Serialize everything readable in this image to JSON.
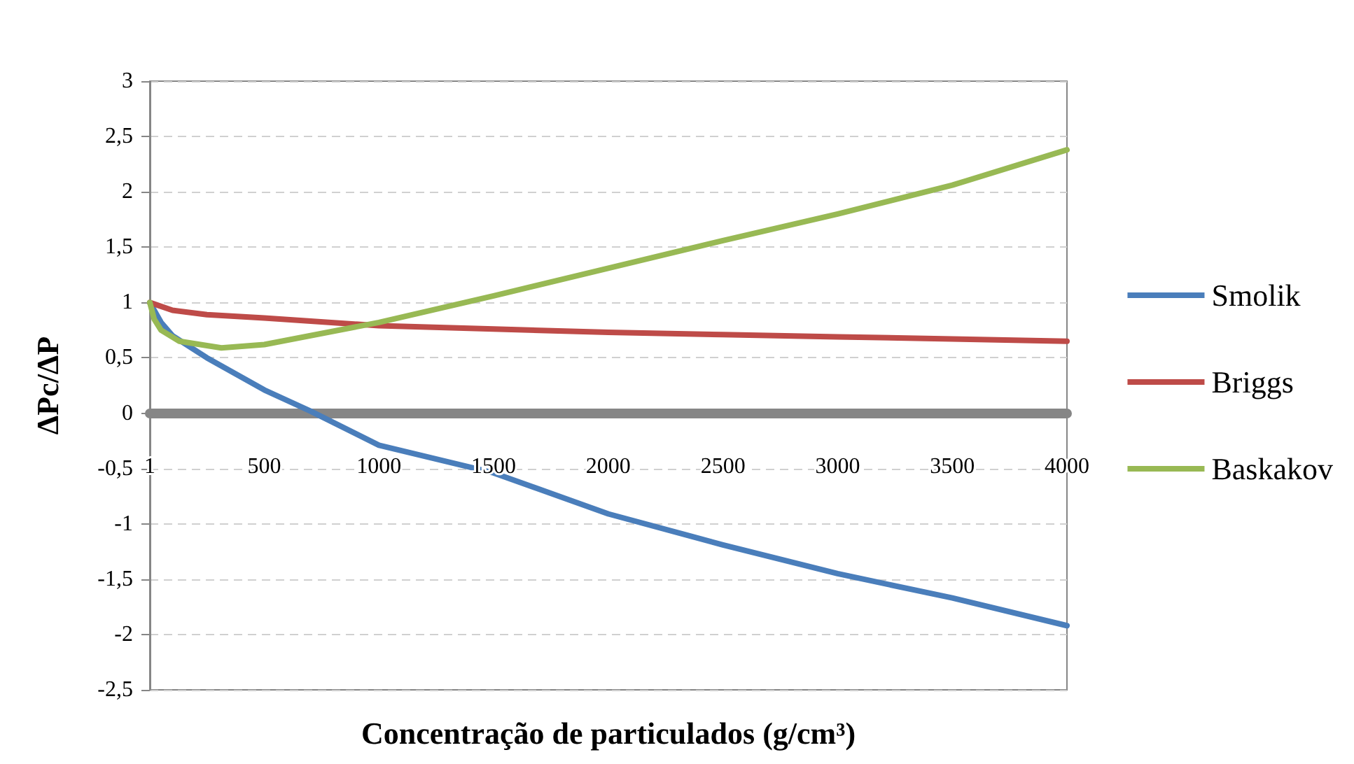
{
  "chart_data": {
    "type": "line",
    "xlabel": "Concentração de particulados (g/cm³)",
    "ylabel": "ΔPc/ΔP",
    "xlim": [
      1,
      4000
    ],
    "xticks": [
      1,
      500,
      1000,
      1500,
      2000,
      2500,
      3000,
      3500,
      4000
    ],
    "ylim": [
      -2.5,
      3
    ],
    "yticks": [
      {
        "value": -2.5,
        "label": "-2,5"
      },
      -2,
      {
        "value": -1.5,
        "label": "-1,5"
      },
      -1,
      {
        "value": -0.5,
        "label": "-0,5"
      },
      0,
      {
        "value": 0.5,
        "label": "0,5"
      },
      1,
      {
        "value": 1.5,
        "label": "1,5"
      },
      2,
      {
        "value": 2.5,
        "label": "2,5"
      },
      3
    ],
    "grid": "y",
    "legend": "right",
    "marker": "none",
    "line_style": "solid",
    "series": [
      {
        "name": "Smolik",
        "color": "#4a7ebb",
        "x": [
          1,
          50,
          100,
          250,
          500,
          700,
          1000,
          1500,
          2000,
          2500,
          3000,
          3500,
          4000
        ],
        "values": [
          1,
          0.82,
          0.7,
          0.5,
          0.21,
          0.02,
          -0.29,
          -0.54,
          -0.91,
          -1.19,
          -1.45,
          -1.67,
          -1.92
        ]
      },
      {
        "name": "Briggs",
        "color": "#be4b48",
        "x": [
          1,
          100,
          250,
          500,
          1000,
          1500,
          2000,
          2500,
          3000,
          3500,
          4000
        ],
        "values": [
          1,
          0.93,
          0.89,
          0.86,
          0.79,
          0.76,
          0.73,
          0.71,
          0.69,
          0.67,
          0.65
        ]
      },
      {
        "name": "Baskakov",
        "color": "#98b954",
        "x": [
          1,
          20,
          50,
          130,
          313,
          500,
          1000,
          1500,
          2000,
          2500,
          3000,
          3500,
          4000
        ],
        "values": [
          1,
          0.85,
          0.75,
          0.65,
          0.59,
          0.62,
          0.82,
          1.06,
          1.31,
          1.56,
          1.8,
          2.06,
          2.38
        ]
      }
    ]
  }
}
